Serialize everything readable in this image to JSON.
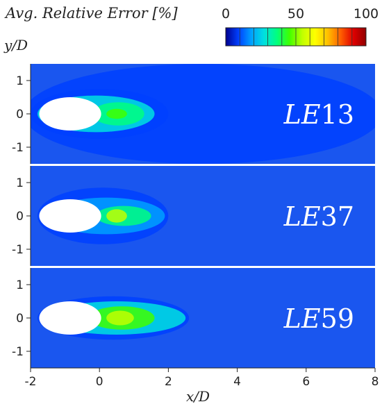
{
  "chart_data": {
    "type": "heatmap",
    "colorbar": {
      "title": "Avg. Relative Error [%]",
      "tick_labels": [
        "0",
        "50",
        "100"
      ],
      "range": [
        0,
        100
      ],
      "colors": [
        "#00008f",
        "#0040ff",
        "#00a0ff",
        "#00e0e0",
        "#00ff80",
        "#40ff00",
        "#c0ff00",
        "#ffff00",
        "#ffc000",
        "#ff6000",
        "#e00000",
        "#900000"
      ]
    },
    "xlabel": "x/D",
    "ylabel": "y/D",
    "xlim": [
      -2,
      8
    ],
    "ylim": [
      -1.5,
      1.5
    ],
    "x_ticks": [
      -2,
      0,
      2,
      4,
      6,
      8
    ],
    "y_ticks": [
      -1,
      0,
      1
    ],
    "background_color": "#1a56ef",
    "body_color": "#ffffff",
    "panels": [
      {
        "label": "LE13",
        "body": {
          "center": [
            -0.85,
            0
          ],
          "semi_axes": [
            0.9,
            0.5
          ]
        },
        "wake_regions": [
          {
            "level": 10,
            "x_range": [
              -2.2,
              8.2
            ],
            "y_range": [
              -1.5,
              1.5
            ]
          },
          {
            "level": 18,
            "x_range": [
              -2.0,
              2.0
            ],
            "y_range": [
              -0.75,
              0.75
            ]
          },
          {
            "level": 28,
            "x_range": [
              -1.8,
              1.6
            ],
            "y_range": [
              -0.55,
              0.55
            ]
          },
          {
            "level": 38,
            "x_range": [
              -0.2,
              1.3
            ],
            "y_range": [
              -0.35,
              0.35
            ]
          },
          {
            "level": 50,
            "x_range": [
              0.2,
              0.8
            ],
            "y_range": [
              -0.15,
              0.15
            ]
          }
        ]
      },
      {
        "label": "LE37",
        "body": {
          "center": [
            -0.85,
            0
          ],
          "semi_axes": [
            0.9,
            0.5
          ]
        },
        "wake_regions": [
          {
            "level": 12,
            "x_range": [
              -1.8,
              2.0
            ],
            "y_range": [
              -0.85,
              0.85
            ]
          },
          {
            "level": 24,
            "x_range": [
              -1.5,
              1.9
            ],
            "y_range": [
              -0.55,
              0.55
            ]
          },
          {
            "level": 40,
            "x_range": [
              -0.1,
              1.5
            ],
            "y_range": [
              -0.3,
              0.3
            ]
          },
          {
            "level": 55,
            "x_range": [
              0.2,
              0.8
            ],
            "y_range": [
              -0.2,
              0.2
            ]
          }
        ]
      },
      {
        "label": "LE59",
        "body": {
          "center": [
            -0.85,
            0
          ],
          "semi_axes": [
            0.9,
            0.5
          ]
        },
        "wake_regions": [
          {
            "level": 15,
            "x_range": [
              -1.8,
              2.6
            ],
            "y_range": [
              -0.65,
              0.65
            ]
          },
          {
            "level": 30,
            "x_range": [
              -1.5,
              2.5
            ],
            "y_range": [
              -0.5,
              0.5
            ]
          },
          {
            "level": 48,
            "x_range": [
              -0.3,
              1.6
            ],
            "y_range": [
              -0.35,
              0.35
            ]
          },
          {
            "level": 62,
            "x_range": [
              0.2,
              1.0
            ],
            "y_range": [
              -0.22,
              0.22
            ]
          }
        ]
      }
    ]
  }
}
